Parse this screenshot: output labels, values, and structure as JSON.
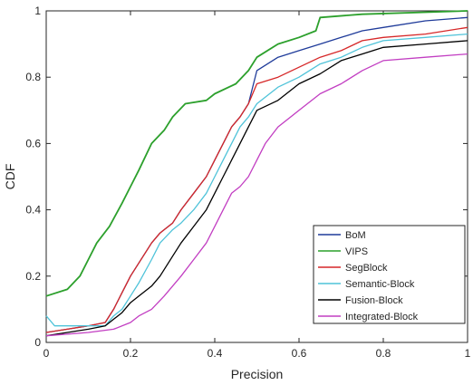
{
  "chart_data": {
    "type": "line",
    "title": "",
    "xlabel": "Precision",
    "ylabel": "CDF",
    "xlim": [
      0,
      1
    ],
    "ylim": [
      0,
      1
    ],
    "xticks": [
      0,
      0.2,
      0.4,
      0.6,
      0.8,
      1
    ],
    "yticks": [
      0,
      0.2,
      0.4,
      0.6,
      0.8,
      1
    ],
    "xtick_labels": [
      "0",
      "0.2",
      "0.4",
      "0.6",
      "0.8",
      "1"
    ],
    "ytick_labels": [
      "0",
      "0.2",
      "0.4",
      "0.6",
      "0.8",
      "1"
    ],
    "grid": false,
    "legend_position": "bottom-right",
    "series": [
      {
        "name": "BoM",
        "color": "#1f3b9a",
        "points": [
          [
            0,
            0.03
          ],
          [
            0.05,
            0.04
          ],
          [
            0.1,
            0.05
          ],
          [
            0.14,
            0.06
          ],
          [
            0.16,
            0.1
          ],
          [
            0.18,
            0.15
          ],
          [
            0.2,
            0.2
          ],
          [
            0.22,
            0.24
          ],
          [
            0.25,
            0.3
          ],
          [
            0.27,
            0.33
          ],
          [
            0.3,
            0.36
          ],
          [
            0.32,
            0.4
          ],
          [
            0.35,
            0.45
          ],
          [
            0.38,
            0.5
          ],
          [
            0.4,
            0.55
          ],
          [
            0.42,
            0.6
          ],
          [
            0.44,
            0.65
          ],
          [
            0.46,
            0.68
          ],
          [
            0.48,
            0.72
          ],
          [
            0.5,
            0.82
          ],
          [
            0.55,
            0.86
          ],
          [
            0.6,
            0.88
          ],
          [
            0.65,
            0.9
          ],
          [
            0.7,
            0.92
          ],
          [
            0.75,
            0.94
          ],
          [
            0.8,
            0.95
          ],
          [
            0.9,
            0.97
          ],
          [
            1,
            0.98
          ]
        ]
      },
      {
        "name": "VIPS",
        "color": "#2ca02c",
        "points": [
          [
            0,
            0.14
          ],
          [
            0.05,
            0.16
          ],
          [
            0.08,
            0.2
          ],
          [
            0.1,
            0.25
          ],
          [
            0.12,
            0.3
          ],
          [
            0.15,
            0.35
          ],
          [
            0.18,
            0.42
          ],
          [
            0.2,
            0.47
          ],
          [
            0.22,
            0.52
          ],
          [
            0.25,
            0.6
          ],
          [
            0.28,
            0.64
          ],
          [
            0.3,
            0.68
          ],
          [
            0.33,
            0.72
          ],
          [
            0.38,
            0.73
          ],
          [
            0.4,
            0.75
          ],
          [
            0.45,
            0.78
          ],
          [
            0.48,
            0.82
          ],
          [
            0.5,
            0.86
          ],
          [
            0.55,
            0.9
          ],
          [
            0.6,
            0.92
          ],
          [
            0.64,
            0.94
          ],
          [
            0.65,
            0.98
          ],
          [
            0.75,
            0.99
          ],
          [
            1,
            1.0
          ]
        ]
      },
      {
        "name": "SegBlock",
        "color": "#d62728",
        "points": [
          [
            0,
            0.03
          ],
          [
            0.05,
            0.04
          ],
          [
            0.1,
            0.05
          ],
          [
            0.14,
            0.06
          ],
          [
            0.16,
            0.1
          ],
          [
            0.18,
            0.15
          ],
          [
            0.2,
            0.2
          ],
          [
            0.22,
            0.24
          ],
          [
            0.25,
            0.3
          ],
          [
            0.27,
            0.33
          ],
          [
            0.3,
            0.36
          ],
          [
            0.32,
            0.4
          ],
          [
            0.35,
            0.45
          ],
          [
            0.38,
            0.5
          ],
          [
            0.4,
            0.55
          ],
          [
            0.42,
            0.6
          ],
          [
            0.44,
            0.65
          ],
          [
            0.46,
            0.68
          ],
          [
            0.48,
            0.72
          ],
          [
            0.5,
            0.78
          ],
          [
            0.55,
            0.8
          ],
          [
            0.6,
            0.83
          ],
          [
            0.65,
            0.86
          ],
          [
            0.7,
            0.88
          ],
          [
            0.75,
            0.91
          ],
          [
            0.8,
            0.92
          ],
          [
            0.9,
            0.93
          ],
          [
            1,
            0.95
          ]
        ]
      },
      {
        "name": "Semantic-Block",
        "color": "#4fc3d9",
        "points": [
          [
            0,
            0.08
          ],
          [
            0.02,
            0.05
          ],
          [
            0.1,
            0.05
          ],
          [
            0.14,
            0.05
          ],
          [
            0.16,
            0.08
          ],
          [
            0.18,
            0.1
          ],
          [
            0.2,
            0.14
          ],
          [
            0.22,
            0.18
          ],
          [
            0.25,
            0.25
          ],
          [
            0.27,
            0.3
          ],
          [
            0.3,
            0.34
          ],
          [
            0.32,
            0.36
          ],
          [
            0.35,
            0.4
          ],
          [
            0.38,
            0.45
          ],
          [
            0.4,
            0.5
          ],
          [
            0.42,
            0.55
          ],
          [
            0.44,
            0.6
          ],
          [
            0.46,
            0.65
          ],
          [
            0.48,
            0.68
          ],
          [
            0.5,
            0.72
          ],
          [
            0.55,
            0.77
          ],
          [
            0.6,
            0.8
          ],
          [
            0.65,
            0.84
          ],
          [
            0.7,
            0.86
          ],
          [
            0.75,
            0.89
          ],
          [
            0.8,
            0.91
          ],
          [
            0.9,
            0.92
          ],
          [
            1,
            0.93
          ]
        ]
      },
      {
        "name": "Fusion-Block",
        "color": "#000000",
        "points": [
          [
            0,
            0.02
          ],
          [
            0.05,
            0.03
          ],
          [
            0.1,
            0.04
          ],
          [
            0.14,
            0.05
          ],
          [
            0.16,
            0.07
          ],
          [
            0.18,
            0.09
          ],
          [
            0.2,
            0.12
          ],
          [
            0.22,
            0.14
          ],
          [
            0.25,
            0.17
          ],
          [
            0.27,
            0.2
          ],
          [
            0.3,
            0.26
          ],
          [
            0.32,
            0.3
          ],
          [
            0.35,
            0.35
          ],
          [
            0.38,
            0.4
          ],
          [
            0.4,
            0.45
          ],
          [
            0.42,
            0.5
          ],
          [
            0.44,
            0.55
          ],
          [
            0.46,
            0.6
          ],
          [
            0.48,
            0.65
          ],
          [
            0.5,
            0.7
          ],
          [
            0.55,
            0.73
          ],
          [
            0.6,
            0.78
          ],
          [
            0.65,
            0.81
          ],
          [
            0.7,
            0.85
          ],
          [
            0.75,
            0.87
          ],
          [
            0.8,
            0.89
          ],
          [
            0.9,
            0.9
          ],
          [
            1,
            0.91
          ]
        ]
      },
      {
        "name": "Integrated-Block",
        "color": "#c23ec2",
        "points": [
          [
            0,
            0.02
          ],
          [
            0.1,
            0.03
          ],
          [
            0.16,
            0.04
          ],
          [
            0.2,
            0.06
          ],
          [
            0.22,
            0.08
          ],
          [
            0.25,
            0.1
          ],
          [
            0.28,
            0.14
          ],
          [
            0.3,
            0.17
          ],
          [
            0.32,
            0.2
          ],
          [
            0.35,
            0.25
          ],
          [
            0.38,
            0.3
          ],
          [
            0.4,
            0.35
          ],
          [
            0.42,
            0.4
          ],
          [
            0.44,
            0.45
          ],
          [
            0.46,
            0.47
          ],
          [
            0.48,
            0.5
          ],
          [
            0.5,
            0.55
          ],
          [
            0.52,
            0.6
          ],
          [
            0.55,
            0.65
          ],
          [
            0.6,
            0.7
          ],
          [
            0.65,
            0.75
          ],
          [
            0.7,
            0.78
          ],
          [
            0.75,
            0.82
          ],
          [
            0.8,
            0.85
          ],
          [
            0.9,
            0.86
          ],
          [
            1,
            0.87
          ]
        ]
      }
    ]
  }
}
